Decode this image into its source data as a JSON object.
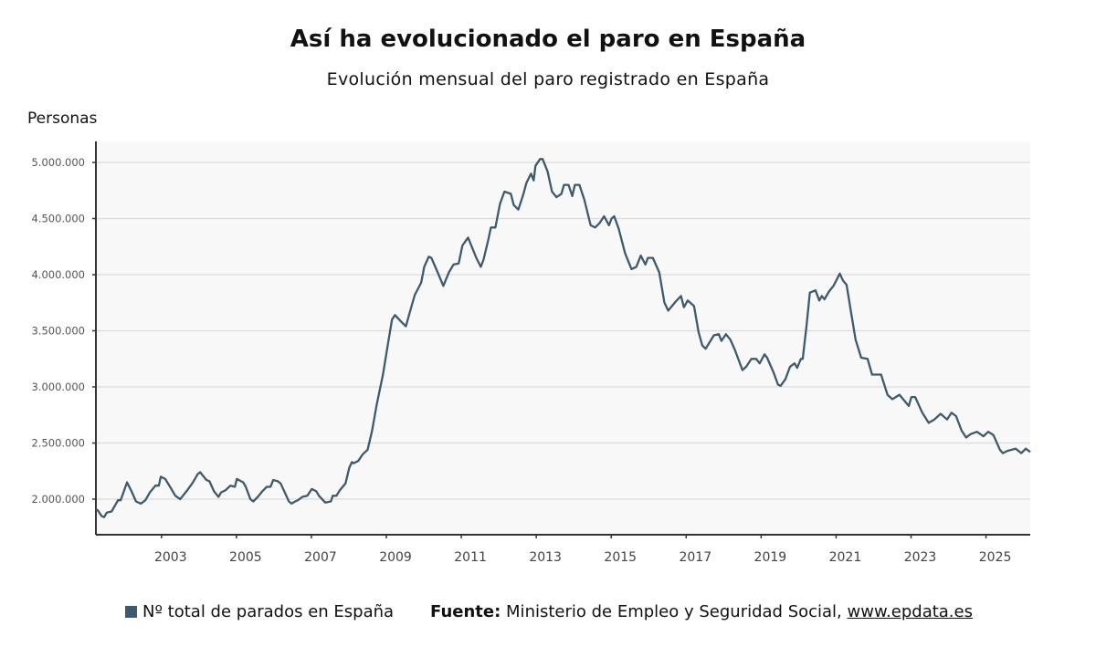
{
  "chart_data": {
    "type": "line",
    "title": "Así ha evolucionado el paro en España",
    "subtitle": "Evolución mensual del paro registrado en España",
    "xlabel": "",
    "ylabel": "Personas",
    "xlim": [
      2001.25,
      2026.18
    ],
    "ylim": [
      1683000,
      5187000
    ],
    "x_ticks": [
      "2003",
      "2005",
      "2007",
      "2009",
      "2011",
      "2013",
      "2015",
      "2017",
      "2019",
      "2021",
      "2023",
      "2025"
    ],
    "y_ticks": [
      {
        "value": 2000000,
        "label": "2.000.000"
      },
      {
        "value": 2500000,
        "label": "2.500.000"
      },
      {
        "value": 3000000,
        "label": "3.000.000"
      },
      {
        "value": 3500000,
        "label": "3.500.000"
      },
      {
        "value": 4000000,
        "label": "4.000.000"
      },
      {
        "value": 4500000,
        "label": "4.500.000"
      },
      {
        "value": 5000000,
        "label": "5.000.000"
      }
    ],
    "grid": true,
    "legend_position": "bottom",
    "series": [
      {
        "name": "Nº total de parados en España",
        "color": "#3f5a6c",
        "x": [
          2001.25,
          2001.3,
          2001.4,
          2001.47,
          2001.54,
          2001.67,
          2001.84,
          2001.91,
          2002.08,
          2002.2,
          2002.32,
          2002.45,
          2002.57,
          2002.69,
          2002.84,
          2002.93,
          2002.98,
          2003.1,
          2003.23,
          2003.37,
          2003.5,
          2003.69,
          2003.84,
          2003.96,
          2004.03,
          2004.2,
          2004.28,
          2004.4,
          2004.52,
          2004.59,
          2004.71,
          2004.84,
          2004.96,
          2005.01,
          2005.18,
          2005.25,
          2005.37,
          2005.45,
          2005.57,
          2005.69,
          2005.81,
          2005.91,
          2005.98,
          2006.1,
          2006.18,
          2006.4,
          2006.47,
          2006.57,
          2006.64,
          2006.76,
          2006.89,
          2007.01,
          2007.13,
          2007.2,
          2007.37,
          2007.52,
          2007.57,
          2007.67,
          2007.76,
          2007.91,
          2008.01,
          2008.08,
          2008.13,
          2008.25,
          2008.37,
          2008.5,
          2008.62,
          2008.74,
          2008.91,
          2009.03,
          2009.15,
          2009.23,
          2009.4,
          2009.52,
          2009.69,
          2009.76,
          2009.93,
          2010.01,
          2010.13,
          2010.2,
          2010.37,
          2010.52,
          2010.67,
          2010.79,
          2010.93,
          2011.03,
          2011.18,
          2011.4,
          2011.52,
          2011.59,
          2011.72,
          2011.79,
          2011.91,
          2012.03,
          2012.15,
          2012.32,
          2012.4,
          2012.52,
          2012.64,
          2012.74,
          2012.86,
          2012.93,
          2012.98,
          2013.1,
          2013.17,
          2013.3,
          2013.42,
          2013.54,
          2013.67,
          2013.74,
          2013.86,
          2013.96,
          2014.03,
          2014.15,
          2014.28,
          2014.45,
          2014.57,
          2014.69,
          2014.81,
          2014.94,
          2015.01,
          2015.08,
          2015.2,
          2015.37,
          2015.54,
          2015.67,
          2015.79,
          2015.91,
          2015.98,
          2016.11,
          2016.28,
          2016.42,
          2016.52,
          2016.72,
          2016.86,
          2016.94,
          2017.04,
          2017.21,
          2017.33,
          2017.43,
          2017.52,
          2017.74,
          2017.87,
          2017.94,
          2018.06,
          2018.18,
          2018.3,
          2018.5,
          2018.6,
          2018.74,
          2018.87,
          2018.96,
          2019.09,
          2019.16,
          2019.33,
          2019.45,
          2019.52,
          2019.65,
          2019.77,
          2019.89,
          2019.96,
          2020.06,
          2020.11,
          2020.21,
          2020.3,
          2020.45,
          2020.55,
          2020.62,
          2020.69,
          2020.81,
          2020.93,
          2021.1,
          2021.18,
          2021.28,
          2021.4,
          2021.52,
          2021.67,
          2021.84,
          2021.96,
          2022.2,
          2022.37,
          2022.5,
          2022.69,
          2022.94,
          2023.01,
          2023.11,
          2023.3,
          2023.47,
          2023.62,
          2023.79,
          2023.96,
          2024.08,
          2024.2,
          2024.35,
          2024.47,
          2024.59,
          2024.76,
          2024.93,
          2025.06,
          2025.2,
          2025.37,
          2025.45,
          2025.57,
          2025.79,
          2025.94,
          2026.06,
          2026.18
        ],
        "values": [
          1910000,
          1900000,
          1850000,
          1840000,
          1880000,
          1890000,
          1990000,
          1990000,
          2150000,
          2070000,
          1980000,
          1960000,
          1990000,
          2060000,
          2120000,
          2120000,
          2200000,
          2180000,
          2110000,
          2030000,
          2000000,
          2080000,
          2150000,
          2220000,
          2240000,
          2170000,
          2160000,
          2070000,
          2020000,
          2060000,
          2080000,
          2120000,
          2110000,
          2180000,
          2150000,
          2110000,
          2000000,
          1980000,
          2020000,
          2070000,
          2110000,
          2110000,
          2170000,
          2160000,
          2140000,
          1980000,
          1960000,
          1980000,
          1990000,
          2020000,
          2030000,
          2090000,
          2070000,
          2030000,
          1970000,
          1980000,
          2030000,
          2030000,
          2080000,
          2140000,
          2280000,
          2330000,
          2320000,
          2340000,
          2400000,
          2440000,
          2610000,
          2840000,
          3110000,
          3360000,
          3600000,
          3640000,
          3580000,
          3540000,
          3740000,
          3820000,
          3930000,
          4070000,
          4160000,
          4150000,
          4020000,
          3900000,
          4020000,
          4090000,
          4100000,
          4260000,
          4330000,
          4150000,
          4070000,
          4130000,
          4310000,
          4420000,
          4420000,
          4630000,
          4740000,
          4720000,
          4620000,
          4580000,
          4700000,
          4820000,
          4900000,
          4840000,
          4970000,
          5030000,
          5030000,
          4920000,
          4740000,
          4690000,
          4720000,
          4800000,
          4800000,
          4700000,
          4800000,
          4800000,
          4670000,
          4440000,
          4420000,
          4460000,
          4520000,
          4440000,
          4500000,
          4520000,
          4410000,
          4190000,
          4050000,
          4070000,
          4170000,
          4090000,
          4150000,
          4150000,
          4020000,
          3750000,
          3680000,
          3760000,
          3810000,
          3710000,
          3770000,
          3720000,
          3490000,
          3370000,
          3340000,
          3460000,
          3470000,
          3410000,
          3470000,
          3420000,
          3330000,
          3150000,
          3180000,
          3250000,
          3250000,
          3210000,
          3290000,
          3260000,
          3130000,
          3020000,
          3010000,
          3070000,
          3180000,
          3210000,
          3170000,
          3250000,
          3250000,
          3540000,
          3840000,
          3860000,
          3770000,
          3810000,
          3780000,
          3850000,
          3900000,
          4010000,
          3950000,
          3910000,
          3660000,
          3420000,
          3260000,
          3250000,
          3110000,
          3110000,
          2930000,
          2890000,
          2930000,
          2830000,
          2910000,
          2910000,
          2770000,
          2680000,
          2710000,
          2760000,
          2710000,
          2770000,
          2740000,
          2610000,
          2550000,
          2580000,
          2600000,
          2560000,
          2600000,
          2570000,
          2440000,
          2410000,
          2430000,
          2450000,
          2410000,
          2450000,
          2420000
        ]
      }
    ]
  },
  "legend": {
    "series_label": "Nº total de parados en España",
    "source_label": "Fuente:",
    "source_text": "Ministerio de Empleo y Seguridad Social,",
    "source_link": "www.epdata.es"
  }
}
